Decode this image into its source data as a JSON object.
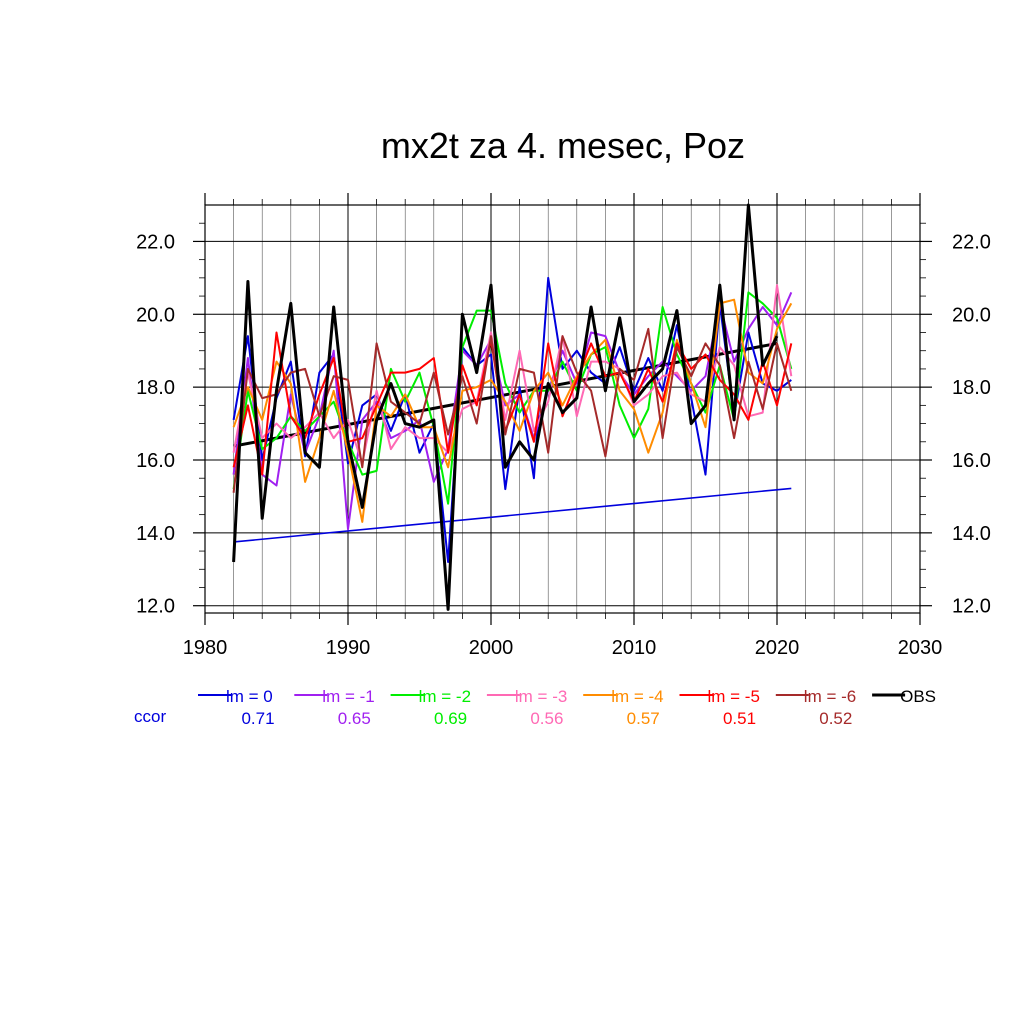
{
  "chart_data": {
    "type": "line",
    "title": "mx2t za 4. mesec, Poz",
    "xlabel": "",
    "ylabel": "",
    "xlim": [
      1980,
      2030
    ],
    "ylim": [
      11.8,
      23.0
    ],
    "x_ticks": [
      1980,
      1990,
      2000,
      2010,
      2020,
      2030
    ],
    "y_ticks": [
      12.0,
      14.0,
      16.0,
      18.0,
      20.0,
      22.0
    ],
    "x_tick_labels": [
      "1980",
      "1990",
      "2000",
      "2010",
      "2020",
      "2030"
    ],
    "y_tick_labels": [
      "12.0",
      "14.0",
      "16.0",
      "18.0",
      "20.0",
      "22.0"
    ],
    "grid": true,
    "legend_position": "bottom",
    "ccor_label": "ccor",
    "x": [
      1982,
      1983,
      1984,
      1985,
      1986,
      1987,
      1988,
      1989,
      1990,
      1991,
      1992,
      1993,
      1994,
      1995,
      1996,
      1997,
      1998,
      1999,
      2000,
      2001,
      2002,
      2003,
      2004,
      2005,
      2006,
      2007,
      2008,
      2009,
      2010,
      2011,
      2012,
      2013,
      2014,
      2015,
      2016,
      2017,
      2018,
      2019,
      2020,
      2021
    ],
    "series": [
      {
        "name": "lm = 0",
        "color": "#0000dd",
        "ccor": "0.71",
        "values": [
          17.1,
          19.4,
          16.0,
          17.7,
          18.7,
          16.1,
          18.4,
          18.9,
          15.9,
          17.5,
          17.8,
          16.8,
          17.8,
          16.2,
          17.0,
          13.2,
          19.1,
          18.6,
          18.9,
          15.2,
          18.0,
          15.5,
          21.0,
          18.5,
          19.0,
          18.4,
          18.1,
          19.1,
          17.9,
          18.8,
          17.9,
          19.7,
          17.7,
          15.6,
          20.3,
          17.2,
          19.5,
          18.1,
          17.9,
          18.2
        ]
      },
      {
        "name": "lm = -1",
        "color": "#a020f0",
        "ccor": "0.65",
        "values": [
          15.6,
          18.8,
          15.6,
          15.3,
          17.8,
          16.2,
          17.2,
          19.0,
          14.1,
          17.1,
          17.6,
          16.6,
          16.8,
          17.1,
          15.4,
          16.3,
          19.0,
          18.6,
          19.3,
          17.5,
          17.8,
          16.6,
          17.9,
          19.0,
          18.1,
          19.5,
          19.4,
          18.4,
          17.8,
          18.3,
          18.7,
          18.3,
          17.9,
          18.3,
          20.3,
          18.7,
          19.6,
          20.2,
          19.7,
          20.6
        ]
      },
      {
        "name": "lm = -2",
        "color": "#00ee00",
        "ccor": "0.69",
        "values": [
          15.2,
          17.9,
          16.3,
          16.6,
          17.2,
          16.8,
          17.2,
          17.6,
          16.5,
          15.6,
          15.7,
          18.5,
          17.6,
          18.4,
          16.9,
          14.8,
          19.1,
          20.1,
          20.1,
          18.1,
          17.3,
          17.9,
          17.9,
          18.7,
          17.9,
          18.9,
          19.1,
          17.5,
          16.6,
          17.4,
          20.2,
          18.9,
          18.1,
          17.3,
          18.6,
          17.1,
          20.6,
          20.3,
          19.9,
          18.5
        ]
      },
      {
        "name": "lm = -3",
        "color": "#ff69b4",
        "ccor": "0.56",
        "values": [
          16.2,
          18.4,
          16.6,
          17.0,
          16.6,
          16.9,
          17.3,
          16.6,
          17.1,
          15.9,
          17.9,
          16.3,
          16.9,
          16.6,
          16.6,
          16.2,
          17.4,
          17.6,
          19.5,
          17.1,
          19.0,
          16.8,
          17.6,
          19.4,
          17.2,
          18.7,
          18.7,
          18.5,
          17.5,
          17.8,
          18.3,
          18.4,
          17.8,
          17.6,
          19.1,
          18.6,
          17.2,
          17.3,
          20.8,
          18.3
        ]
      },
      {
        "name": "lm = -4",
        "color": "#ff8c00",
        "ccor": "0.57",
        "values": [
          16.9,
          18.0,
          17.1,
          18.7,
          18.1,
          15.4,
          16.6,
          17.9,
          16.2,
          14.3,
          17.5,
          17.2,
          17.8,
          16.9,
          16.9,
          15.8,
          17.9,
          18.0,
          18.2,
          17.6,
          16.8,
          17.9,
          18.4,
          17.5,
          18.3,
          18.9,
          19.3,
          17.9,
          17.4,
          16.2,
          17.3,
          19.3,
          18.1,
          16.9,
          20.3,
          20.4,
          18.4,
          18.1,
          19.6,
          20.3
        ]
      },
      {
        "name": "lm = -5",
        "color": "#ff0000",
        "ccor": "0.51",
        "values": [
          15.8,
          17.5,
          15.6,
          19.5,
          17.2,
          16.6,
          17.8,
          18.8,
          16.5,
          16.6,
          17.5,
          18.4,
          18.4,
          18.5,
          18.8,
          16.2,
          18.6,
          17.5,
          19.3,
          16.8,
          17.8,
          16.5,
          19.2,
          17.2,
          18.2,
          19.2,
          18.3,
          18.4,
          17.6,
          18.5,
          17.6,
          19.2,
          18.5,
          18.9,
          18.2,
          17.8,
          17.1,
          18.7,
          17.5,
          19.2
        ]
      },
      {
        "name": "lm = -6",
        "color": "#a52a2a",
        "ccor": "0.52",
        "values": [
          15.1,
          18.5,
          17.7,
          17.8,
          18.4,
          18.5,
          17.2,
          18.3,
          18.2,
          15.8,
          19.2,
          17.6,
          17.3,
          17.0,
          18.4,
          16.7,
          18.3,
          17.0,
          19.4,
          16.7,
          18.5,
          18.4,
          16.2,
          19.4,
          18.4,
          17.9,
          16.1,
          18.5,
          18.2,
          19.6,
          16.6,
          19.1,
          18.3,
          19.2,
          18.6,
          16.6,
          18.7,
          17.4,
          19.2,
          17.9
        ]
      },
      {
        "name": "OBS",
        "color": "#000000",
        "ccor": "",
        "values": [
          13.2,
          20.9,
          14.4,
          17.9,
          20.3,
          16.2,
          15.8,
          20.2,
          16.5,
          14.7,
          17.1,
          18.1,
          17.0,
          16.9,
          17.1,
          11.9,
          20.0,
          18.4,
          20.8,
          15.8,
          16.5,
          16.0,
          18.1,
          17.3,
          17.7,
          20.2,
          17.9,
          19.9,
          17.6,
          18.1,
          18.5,
          20.1,
          17.0,
          17.5,
          20.8,
          17.1,
          23.0,
          18.6,
          19.4,
          null
        ]
      }
    ],
    "trend_lines": [
      {
        "color": "#0000dd",
        "x": [
          1982,
          2021
        ],
        "y": [
          13.75,
          15.22
        ]
      },
      {
        "color": "#000000",
        "x": [
          1982,
          2020
        ],
        "y": [
          16.38,
          19.2
        ]
      }
    ]
  }
}
